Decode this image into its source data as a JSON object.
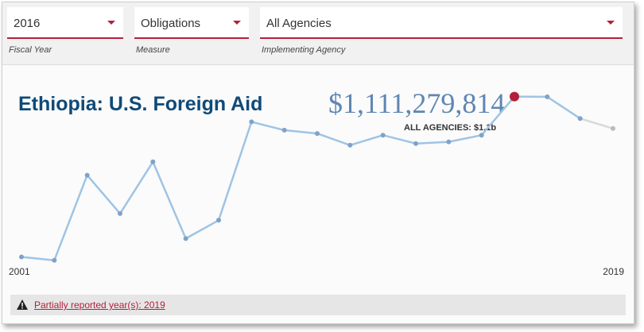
{
  "filters": {
    "fiscal_year": {
      "value": "2016",
      "label": "Fiscal Year"
    },
    "measure": {
      "value": "Obligations",
      "label": "Measure"
    },
    "agency": {
      "value": "All Agencies",
      "label": "Implementing Agency"
    }
  },
  "main": {
    "title": "Ethiopia: U.S. Foreign Aid",
    "amount": "$1,111,279,814",
    "amount_sub": "ALL AGENCIES: $1.1b"
  },
  "notice": {
    "text": "Partially reported year(s): 2019"
  },
  "colors": {
    "accent": "#b3203a",
    "line": "#9fc4e4",
    "point": "#7fa3c8",
    "partial_line": "#d9d9d9",
    "partial_point": "#bbbbbb",
    "selected_point": "#b3203a",
    "title": "#0f4a78",
    "amount": "#5f86b3"
  },
  "chart_data": {
    "type": "line",
    "x": [
      2001,
      2002,
      2003,
      2004,
      2005,
      2006,
      2007,
      2008,
      2009,
      2010,
      2011,
      2012,
      2013,
      2014,
      2015,
      2016,
      2017,
      2018,
      2019
    ],
    "values": [
      0.15,
      0.13,
      0.64,
      0.41,
      0.72,
      0.26,
      0.37,
      0.96,
      0.91,
      0.89,
      0.82,
      0.88,
      0.83,
      0.84,
      0.88,
      1.111279814,
      1.11,
      0.98,
      0.92
    ],
    "unit": "billions USD",
    "selected_x": 2016,
    "partial_x": [
      2019
    ],
    "x_tick_labels": [
      "2001",
      "2019"
    ],
    "ylim": [
      0,
      1.2
    ],
    "grid": false,
    "legend": "none"
  }
}
